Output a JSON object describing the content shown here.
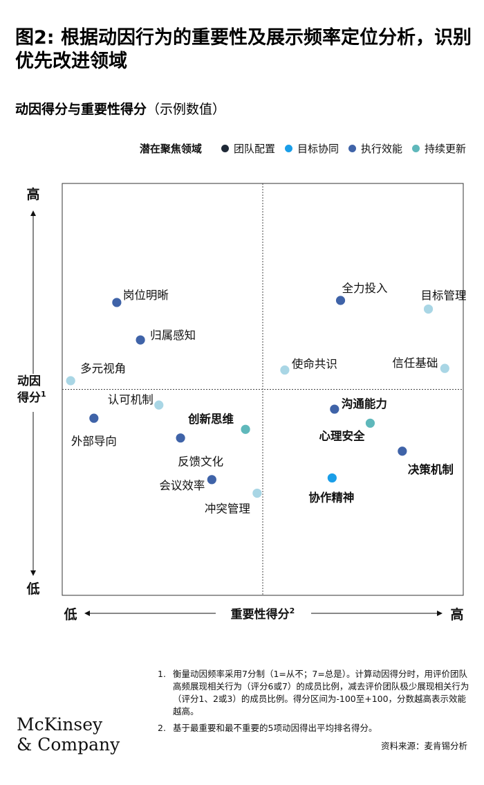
{
  "title": "图2: 根据动因行为的重要性及展示频率定位分析，识别优先改进领域",
  "subtitle": "动因得分与重要性得分",
  "subtitle_note": "（示例数值）",
  "legend": {
    "title": "潜在聚焦领域",
    "items": [
      {
        "label": "团队配置",
        "color": "#1f2937"
      },
      {
        "label": "目标协同",
        "color": "#1a9ee8"
      },
      {
        "label": "执行效能",
        "color": "#3f63a8"
      },
      {
        "label": "持续更新",
        "color": "#5fb8bb"
      }
    ]
  },
  "chart_data": {
    "type": "scatter",
    "xlabel": "重要性得分",
    "xlabel_sup": "2",
    "ylabel": "动因得分",
    "ylabel_sup": "1",
    "x_low": "低",
    "x_high": "高",
    "y_low": "低",
    "y_high": "高",
    "xlim": [
      0,
      100
    ],
    "ylim": [
      0,
      100
    ],
    "quadrant_divider": {
      "x": 50,
      "y": 50
    },
    "points": [
      {
        "label": "岗位明晰",
        "x": 13.6,
        "y": 71.1,
        "group": "执行效能",
        "color": "#3f63a8",
        "bold": false
      },
      {
        "label": "全力投入",
        "x": 69.4,
        "y": 71.6,
        "group": "执行效能",
        "color": "#3f63a8",
        "bold": false
      },
      {
        "label": "目标管理",
        "x": 91.3,
        "y": 69.5,
        "group": "持续更新",
        "color": "#a9d6e5",
        "bold": false
      },
      {
        "label": "归属感知",
        "x": 19.5,
        "y": 62.0,
        "group": "执行效能",
        "color": "#3f63a8",
        "bold": false
      },
      {
        "label": "使命共识",
        "x": 55.5,
        "y": 54.7,
        "group": "持续更新",
        "color": "#a9d6e5",
        "bold": false
      },
      {
        "label": "信任基础",
        "x": 95.4,
        "y": 55.1,
        "group": "持续更新",
        "color": "#a9d6e5",
        "bold": false
      },
      {
        "label": "多元视角",
        "x": 2.1,
        "y": 52.1,
        "group": "持续更新",
        "color": "#a9d6e5",
        "bold": false
      },
      {
        "label": "认可机制",
        "x": 24.1,
        "y": 46.2,
        "group": "持续更新",
        "color": "#a9d6e5",
        "bold": false
      },
      {
        "label": "沟通能力",
        "x": 67.9,
        "y": 45.2,
        "group": "执行效能",
        "color": "#3f63a8",
        "bold": true
      },
      {
        "label": "外部导向",
        "x": 7.9,
        "y": 43.0,
        "group": "团队配置",
        "color": "#3f63a8",
        "bold": false
      },
      {
        "label": "心理安全",
        "x": 76.8,
        "y": 41.8,
        "group": "持续更新",
        "color": "#5fb8bb",
        "bold": true
      },
      {
        "label": "创新思维",
        "x": 45.7,
        "y": 40.3,
        "group": "持续更新",
        "color": "#5fb8bb",
        "bold": true
      },
      {
        "label": "反馈文化",
        "x": 29.5,
        "y": 38.2,
        "group": "执行效能",
        "color": "#3f63a8",
        "bold": false
      },
      {
        "label": "决策机制",
        "x": 84.8,
        "y": 35.0,
        "group": "执行效能",
        "color": "#3f63a8",
        "bold": true
      },
      {
        "label": "协作精神",
        "x": 67.3,
        "y": 28.5,
        "group": "目标协同",
        "color": "#1a9ee8",
        "bold": true
      },
      {
        "label": "会议效率",
        "x": 37.3,
        "y": 28.1,
        "group": "执行效能",
        "color": "#3f63a8",
        "bold": false
      },
      {
        "label": "冲突管理",
        "x": 48.6,
        "y": 24.8,
        "group": "持续更新",
        "color": "#a9d6e5",
        "bold": false
      }
    ]
  },
  "footnotes": [
    {
      "num": "1.",
      "text": "衡量动因频率采用7分制（1=从不；7=总是）。计算动因得分时，用评价团队高频展现相关行为（评分6或7）的成员比例，减去评价团队极少展现相关行为（评分1、2或3）的成员比例。得分区间为-100至+100，分数越高表示效能越高。"
    },
    {
      "num": "2.",
      "text": "基于最重要和最不重要的5项动因得出平均排名得分。"
    }
  ],
  "source": "资料来源：麦肯锡分析",
  "logo": {
    "line1": "McKinsey",
    "line2": "& Company"
  }
}
